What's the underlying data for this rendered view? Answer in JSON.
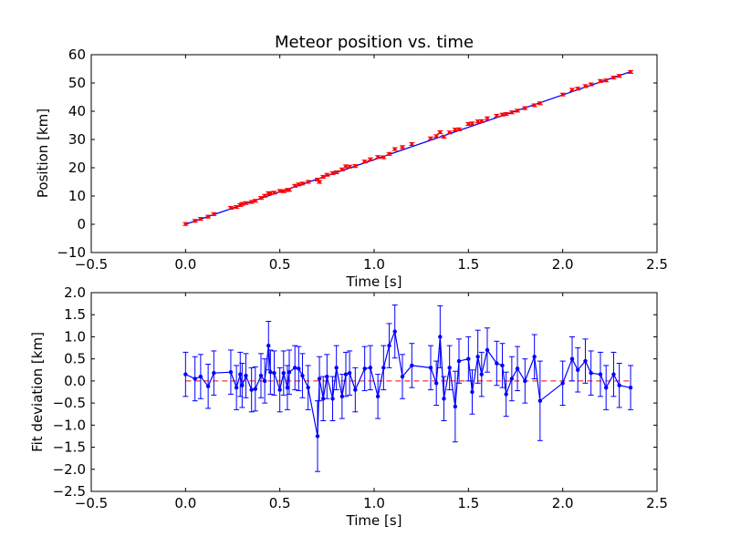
{
  "colors": {
    "data_red": "#ff0000",
    "fit_blue": "#0000ff",
    "axes": "#000000"
  },
  "chart_data": [
    {
      "type": "scatter",
      "title": "Meteor position vs. time",
      "xlabel": "Time [s]",
      "ylabel": "Position [km]",
      "xlim": [
        -0.5,
        2.5
      ],
      "ylim": [
        -10,
        60
      ],
      "xticks": [
        "−0.5",
        "0.0",
        "0.5",
        "1.0",
        "1.5",
        "2.0",
        "2.5"
      ],
      "xtick_values": [
        -0.5,
        0.0,
        0.5,
        1.0,
        1.5,
        2.0,
        2.5
      ],
      "yticks": [
        "−10",
        "0",
        "10",
        "20",
        "30",
        "40",
        "50",
        "60"
      ],
      "ytick_values": [
        -10,
        0,
        10,
        20,
        30,
        40,
        50,
        60
      ],
      "grid": false,
      "fit_line": {
        "x": [
          0.0,
          2.36
        ],
        "y": [
          0.0,
          54.0
        ]
      },
      "x": [
        0.0,
        0.05,
        0.08,
        0.12,
        0.15,
        0.24,
        0.27,
        0.29,
        0.3,
        0.32,
        0.35,
        0.37,
        0.4,
        0.42,
        0.44,
        0.45,
        0.47,
        0.5,
        0.52,
        0.54,
        0.55,
        0.58,
        0.6,
        0.62,
        0.65,
        0.7,
        0.71,
        0.73,
        0.75,
        0.78,
        0.8,
        0.83,
        0.85,
        0.87,
        0.9,
        0.95,
        0.98,
        1.02,
        1.05,
        1.08,
        1.11,
        1.15,
        1.2,
        1.3,
        1.33,
        1.35,
        1.37,
        1.4,
        1.43,
        1.45,
        1.5,
        1.52,
        1.55,
        1.57,
        1.6,
        1.65,
        1.68,
        1.7,
        1.73,
        1.76,
        1.8,
        1.85,
        1.88,
        2.0,
        2.05,
        2.08,
        2.12,
        2.15,
        2.2,
        2.23,
        2.27,
        2.3,
        2.36
      ],
      "y": [
        0.1,
        1.2,
        1.9,
        2.7,
        3.6,
        5.8,
        6.1,
        6.8,
        7.2,
        7.5,
        7.9,
        8.3,
        9.3,
        10.1,
        11.0,
        11.0,
        11.2,
        11.8,
        11.7,
        12.1,
        12.2,
        13.6,
        14.1,
        14.4,
        15.0,
        15.8,
        15.0,
        16.8,
        17.5,
        18.1,
        18.4,
        19.4,
        20.5,
        20.4,
        20.6,
        22.2,
        23.0,
        23.8,
        23.7,
        24.9,
        26.6,
        27.3,
        28.4,
        30.4,
        31.2,
        32.6,
        31.0,
        32.5,
        33.5,
        33.6,
        35.5,
        35.7,
        36.4,
        36.5,
        37.5,
        38.4,
        38.8,
        39.0,
        39.6,
        40.2,
        41.1,
        42.1,
        42.8,
        45.9,
        47.6,
        48.0,
        48.9,
        49.5,
        50.7,
        50.9,
        51.9,
        52.5,
        53.9
      ],
      "yerr": 0.5
    },
    {
      "type": "line",
      "xlabel": "Time [s]",
      "ylabel": "Fit deviation [km]",
      "xlim": [
        -0.5,
        2.5
      ],
      "ylim": [
        -2.5,
        2.0
      ],
      "xticks": [
        "−0.5",
        "0.0",
        "0.5",
        "1.0",
        "1.5",
        "2.0",
        "2.5"
      ],
      "xtick_values": [
        -0.5,
        0.0,
        0.5,
        1.0,
        1.5,
        2.0,
        2.5
      ],
      "yticks": [
        "−2.5",
        "−2.0",
        "−1.5",
        "−1.0",
        "−0.5",
        "0.0",
        "0.5",
        "1.0",
        "1.5",
        "2.0"
      ],
      "ytick_values": [
        -2.5,
        -2.0,
        -1.5,
        -1.0,
        -0.5,
        0.0,
        0.5,
        1.0,
        1.5,
        2.0
      ],
      "grid": false,
      "zero_line": {
        "style": "dashed",
        "y": 0
      },
      "x": [
        0.0,
        0.05,
        0.08,
        0.12,
        0.15,
        0.24,
        0.27,
        0.29,
        0.3,
        0.32,
        0.35,
        0.37,
        0.4,
        0.42,
        0.44,
        0.45,
        0.47,
        0.5,
        0.52,
        0.54,
        0.55,
        0.58,
        0.6,
        0.62,
        0.65,
        0.7,
        0.71,
        0.73,
        0.75,
        0.78,
        0.8,
        0.83,
        0.85,
        0.87,
        0.9,
        0.95,
        0.98,
        1.02,
        1.05,
        1.08,
        1.11,
        1.15,
        1.2,
        1.3,
        1.33,
        1.35,
        1.37,
        1.4,
        1.43,
        1.45,
        1.5,
        1.52,
        1.55,
        1.57,
        1.6,
        1.65,
        1.68,
        1.7,
        1.73,
        1.76,
        1.8,
        1.85,
        1.88,
        2.0,
        2.05,
        2.08,
        2.12,
        2.15,
        2.2,
        2.23,
        2.27,
        2.3,
        2.36
      ],
      "y": [
        0.15,
        0.05,
        0.1,
        -0.12,
        0.18,
        0.2,
        -0.15,
        0.15,
        -0.1,
        0.12,
        -0.2,
        -0.18,
        0.12,
        0.0,
        0.8,
        0.2,
        0.18,
        -0.2,
        0.18,
        -0.15,
        0.2,
        0.3,
        0.28,
        0.12,
        -0.15,
        -1.25,
        0.05,
        -0.4,
        0.1,
        -0.4,
        0.3,
        -0.35,
        0.15,
        0.18,
        -0.2,
        0.28,
        0.3,
        -0.35,
        0.3,
        0.8,
        1.12,
        0.1,
        0.35,
        0.3,
        -0.05,
        1.0,
        -0.4,
        0.3,
        -0.58,
        0.45,
        0.5,
        -0.25,
        0.55,
        0.15,
        0.7,
        0.4,
        0.35,
        -0.3,
        0.05,
        0.28,
        0.0,
        0.55,
        -0.45,
        -0.05,
        0.5,
        0.25,
        0.45,
        0.18,
        0.15,
        -0.15,
        0.15,
        -0.1,
        -0.15
      ],
      "yerr": [
        0.5,
        0.5,
        0.5,
        0.5,
        0.5,
        0.5,
        0.5,
        0.5,
        0.5,
        0.5,
        0.5,
        0.5,
        0.5,
        0.5,
        0.55,
        0.5,
        0.5,
        0.5,
        0.5,
        0.5,
        0.5,
        0.5,
        0.5,
        0.5,
        0.5,
        0.8,
        0.5,
        0.5,
        0.5,
        0.5,
        0.5,
        0.5,
        0.5,
        0.5,
        0.5,
        0.5,
        0.5,
        0.5,
        0.5,
        0.5,
        0.6,
        0.5,
        0.5,
        0.5,
        0.5,
        0.7,
        0.5,
        0.5,
        0.8,
        0.5,
        0.5,
        0.5,
        0.6,
        0.5,
        0.5,
        0.5,
        0.5,
        0.5,
        0.5,
        0.5,
        0.5,
        0.5,
        0.9,
        0.5,
        0.5,
        0.5,
        0.5,
        0.5,
        0.5,
        0.5,
        0.5,
        0.5,
        0.5
      ]
    }
  ]
}
